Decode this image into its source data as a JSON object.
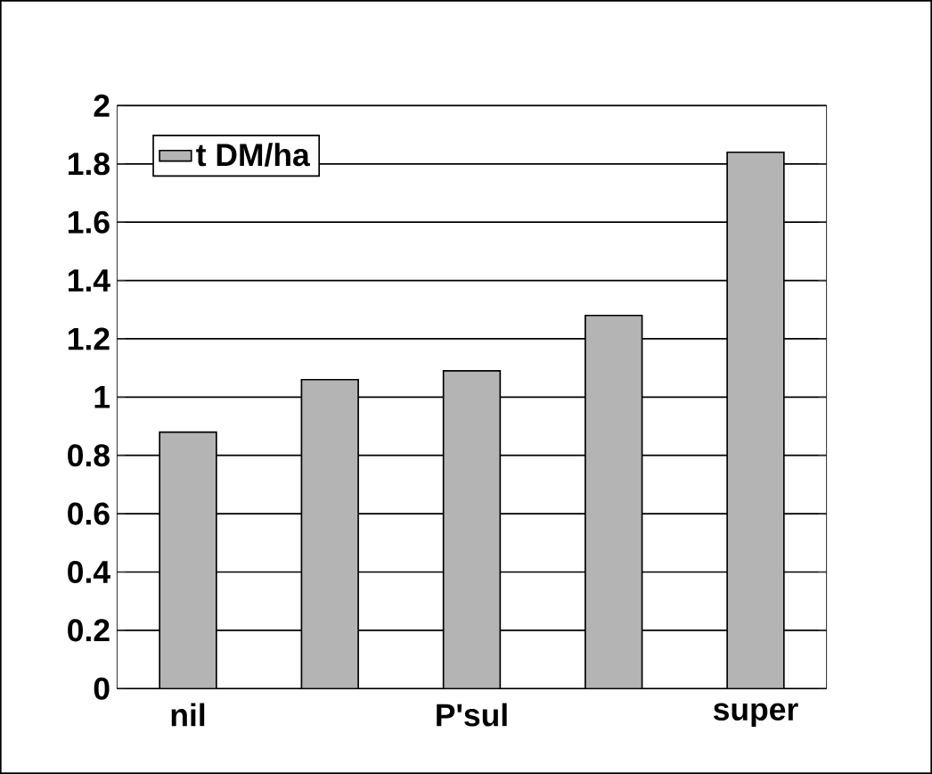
{
  "chart_data": {
    "type": "bar",
    "categories": [
      "nil",
      null,
      "P'sul",
      null,
      "super"
    ],
    "series": [
      {
        "name": "t DM/ha",
        "color": "#b4b4b4",
        "values": [
          0.88,
          1.06,
          1.09,
          1.28,
          1.84
        ]
      }
    ],
    "ylim": [
      0,
      2
    ],
    "yticks": [
      0,
      0.2,
      0.4,
      0.6,
      0.8,
      1,
      1.2,
      1.4,
      1.6,
      1.8,
      2
    ],
    "grid": "y",
    "legend": "top left"
  }
}
